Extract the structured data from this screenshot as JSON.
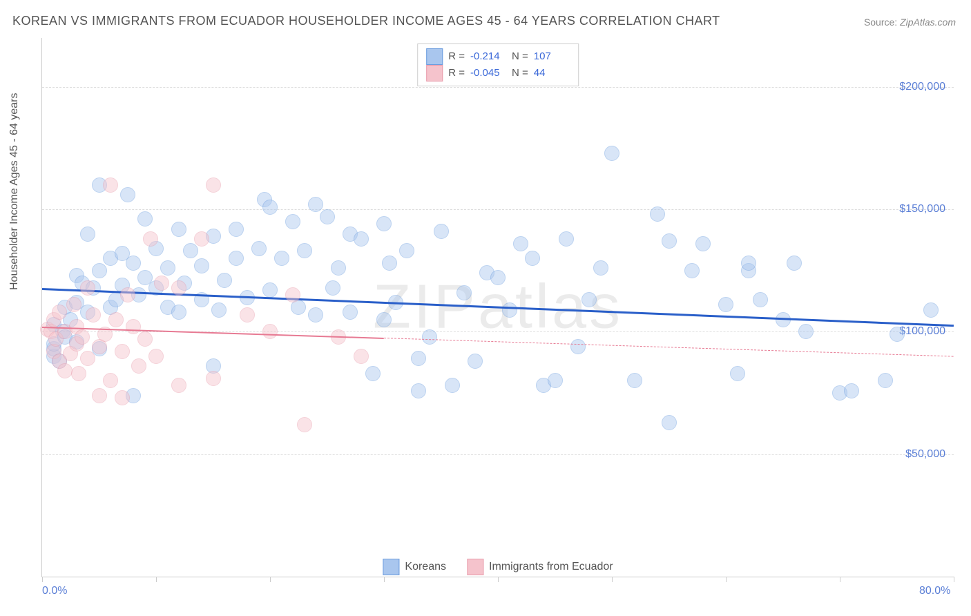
{
  "title": "KOREAN VS IMMIGRANTS FROM ECUADOR HOUSEHOLDER INCOME AGES 45 - 64 YEARS CORRELATION CHART",
  "source_label": "Source:",
  "source_value": "ZipAtlas.com",
  "watermark": "ZIPatlas",
  "chart": {
    "type": "scatter",
    "x_min": 0.0,
    "x_max": 80.0,
    "y_min": 0,
    "y_max": 220000,
    "y_label": "Householder Income Ages 45 - 64 years",
    "x_tick_positions": [
      0,
      10,
      20,
      30,
      40,
      50,
      60,
      70,
      80
    ],
    "x_tick_labels": {
      "0": "0.0%",
      "80": "80.0%"
    },
    "y_ticks": [
      50000,
      100000,
      150000,
      200000
    ],
    "y_tick_labels": [
      "$50,000",
      "$100,000",
      "$150,000",
      "$200,000"
    ],
    "grid_color": "#dddddd",
    "axis_color": "#cccccc",
    "background": "#ffffff",
    "label_fontsize": 16,
    "tick_fontsize": 16,
    "tick_color": "#5b7fd6",
    "point_radius": 10,
    "point_opacity": 0.45,
    "series": [
      {
        "name": "Koreans",
        "fill": "#a9c6ee",
        "stroke": "#6b9cde",
        "trend_color": "#2a5fc9",
        "trend_width": 3,
        "trend_y_at_xmin": 118000,
        "trend_y_at_xmax": 103000,
        "trend_solid_until_x": 80,
        "R": "-0.214",
        "N": "107",
        "points": [
          [
            1,
            90000
          ],
          [
            1,
            93000
          ],
          [
            1,
            95000
          ],
          [
            1,
            103000
          ],
          [
            1.5,
            88000
          ],
          [
            1.8,
            100000
          ],
          [
            2,
            110000
          ],
          [
            2,
            98000
          ],
          [
            2.5,
            105000
          ],
          [
            3,
            112000
          ],
          [
            3,
            123000
          ],
          [
            3,
            96000
          ],
          [
            3.5,
            120000
          ],
          [
            4,
            108000
          ],
          [
            4,
            140000
          ],
          [
            4.5,
            118000
          ],
          [
            5,
            93000
          ],
          [
            5,
            125000
          ],
          [
            5,
            160000
          ],
          [
            6,
            130000
          ],
          [
            6,
            110000
          ],
          [
            6.5,
            113000
          ],
          [
            7,
            119000
          ],
          [
            7,
            132000
          ],
          [
            7.5,
            156000
          ],
          [
            8,
            128000
          ],
          [
            8,
            74000
          ],
          [
            8.5,
            115000
          ],
          [
            9,
            122000
          ],
          [
            9,
            146000
          ],
          [
            10,
            118000
          ],
          [
            10,
            134000
          ],
          [
            11,
            126000
          ],
          [
            11,
            110000
          ],
          [
            12,
            142000
          ],
          [
            12,
            108000
          ],
          [
            12.5,
            120000
          ],
          [
            13,
            133000
          ],
          [
            14,
            113000
          ],
          [
            14,
            127000
          ],
          [
            15,
            139000
          ],
          [
            15,
            86000
          ],
          [
            15.5,
            109000
          ],
          [
            16,
            121000
          ],
          [
            17,
            130000
          ],
          [
            17,
            142000
          ],
          [
            18,
            114000
          ],
          [
            19,
            134000
          ],
          [
            19.5,
            154000
          ],
          [
            20,
            117000
          ],
          [
            20,
            151000
          ],
          [
            21,
            130000
          ],
          [
            22,
            145000
          ],
          [
            22.5,
            110000
          ],
          [
            23,
            133000
          ],
          [
            24,
            107000
          ],
          [
            24,
            152000
          ],
          [
            25,
            147000
          ],
          [
            25.5,
            118000
          ],
          [
            26,
            126000
          ],
          [
            27,
            140000
          ],
          [
            27,
            108000
          ],
          [
            28,
            138000
          ],
          [
            29,
            83000
          ],
          [
            30,
            144000
          ],
          [
            30,
            105000
          ],
          [
            30.5,
            128000
          ],
          [
            31,
            112000
          ],
          [
            32,
            133000
          ],
          [
            33,
            89000
          ],
          [
            33,
            76000
          ],
          [
            34,
            98000
          ],
          [
            35,
            141000
          ],
          [
            36,
            78000
          ],
          [
            37,
            116000
          ],
          [
            38,
            88000
          ],
          [
            39,
            124000
          ],
          [
            40,
            122000
          ],
          [
            41,
            109000
          ],
          [
            42,
            136000
          ],
          [
            43,
            130000
          ],
          [
            44,
            78000
          ],
          [
            45,
            80000
          ],
          [
            46,
            138000
          ],
          [
            47,
            94000
          ],
          [
            48,
            113000
          ],
          [
            49,
            126000
          ],
          [
            50,
            173000
          ],
          [
            52,
            80000
          ],
          [
            54,
            148000
          ],
          [
            55,
            137000
          ],
          [
            55,
            63000
          ],
          [
            57,
            125000
          ],
          [
            58,
            136000
          ],
          [
            60,
            111000
          ],
          [
            61,
            83000
          ],
          [
            62,
            125000
          ],
          [
            62,
            128000
          ],
          [
            63,
            113000
          ],
          [
            65,
            105000
          ],
          [
            66,
            128000
          ],
          [
            67,
            100000
          ],
          [
            70,
            75000
          ],
          [
            71,
            76000
          ],
          [
            74,
            80000
          ],
          [
            75,
            99000
          ],
          [
            78,
            109000
          ]
        ]
      },
      {
        "name": "Immigrants from Ecuador",
        "fill": "#f5c3cc",
        "stroke": "#e89bab",
        "trend_color": "#e77a93",
        "trend_width": 2,
        "trend_y_at_xmin": 102000,
        "trend_y_at_xmax": 90000,
        "trend_solid_until_x": 30,
        "R": "-0.045",
        "N": "44",
        "points": [
          [
            0.5,
            101000
          ],
          [
            0.8,
            100000
          ],
          [
            1,
            105000
          ],
          [
            1,
            92000
          ],
          [
            1.2,
            97000
          ],
          [
            1.5,
            108000
          ],
          [
            1.5,
            88000
          ],
          [
            2,
            84000
          ],
          [
            2,
            100000
          ],
          [
            2.5,
            91000
          ],
          [
            2.8,
            111000
          ],
          [
            3,
            95000
          ],
          [
            3,
            102000
          ],
          [
            3.2,
            83000
          ],
          [
            3.5,
            98000
          ],
          [
            4,
            118000
          ],
          [
            4,
            89000
          ],
          [
            4.5,
            107000
          ],
          [
            5,
            94000
          ],
          [
            5,
            74000
          ],
          [
            5.5,
            99000
          ],
          [
            6,
            80000
          ],
          [
            6,
            160000
          ],
          [
            6.5,
            105000
          ],
          [
            7,
            92000
          ],
          [
            7,
            73000
          ],
          [
            7.5,
            115000
          ],
          [
            8,
            102000
          ],
          [
            8.5,
            86000
          ],
          [
            9,
            97000
          ],
          [
            9.5,
            138000
          ],
          [
            10,
            90000
          ],
          [
            10.5,
            120000
          ],
          [
            12,
            118000
          ],
          [
            12,
            78000
          ],
          [
            14,
            138000
          ],
          [
            15,
            160000
          ],
          [
            15,
            81000
          ],
          [
            18,
            107000
          ],
          [
            20,
            100000
          ],
          [
            22,
            115000
          ],
          [
            23,
            62000
          ],
          [
            26,
            98000
          ],
          [
            28,
            90000
          ]
        ]
      }
    ]
  },
  "stats_legend": {
    "r_prefix": "R = ",
    "n_prefix": "N = "
  },
  "bottom_legend": {
    "items": [
      "Koreans",
      "Immigrants from Ecuador"
    ]
  }
}
